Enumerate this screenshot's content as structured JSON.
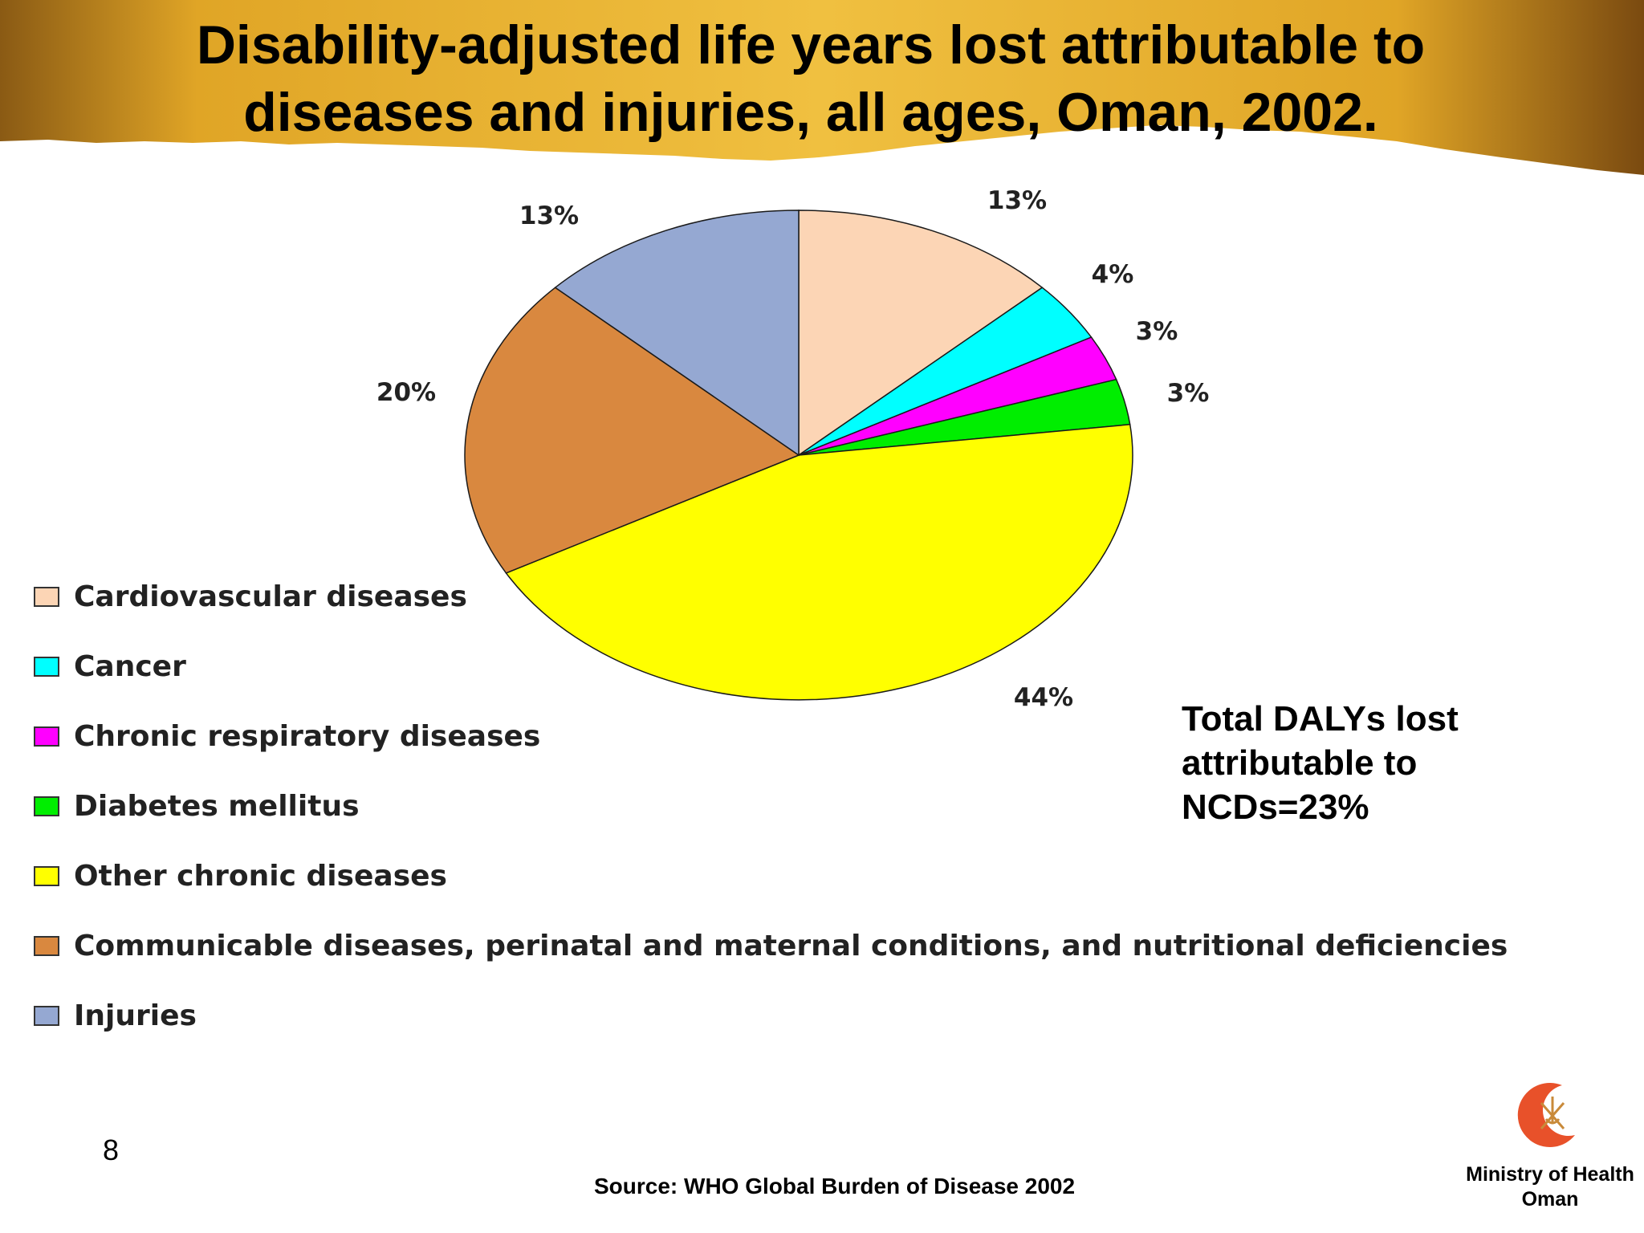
{
  "slide": {
    "title_lines": [
      "Disability-adjusted life years lost attributable to",
      "diseases and injuries, all ages, Oman, 2002."
    ],
    "note_lines": [
      "Total DALYs lost",
      "attributable to",
      "NCDs=23%"
    ],
    "page_number": "8",
    "source": "Source: WHO Global Burden of Disease 2002",
    "organization_lines": [
      "Ministry of Health",
      "Oman"
    ],
    "banner_colors": {
      "gold": "#e0a526",
      "dark": "#7a4a10"
    },
    "emblem_icon": "crescent-emblem-icon"
  },
  "chart_data": {
    "type": "pie",
    "title": "",
    "slices": [
      {
        "label": "Cardiovascular diseases",
        "value": 13,
        "display": "13%",
        "color": "#fcd5b5"
      },
      {
        "label": "Cancer",
        "value": 4,
        "display": "4%",
        "color": "#00ffff"
      },
      {
        "label": "Chronic respiratory diseases",
        "value": 3,
        "display": "3%",
        "color": "#ff00ff"
      },
      {
        "label": "Diabetes mellitus",
        "value": 3,
        "display": "3%",
        "color": "#00ee00"
      },
      {
        "label": "Other chronic diseases",
        "value": 44,
        "display": "44%",
        "color": "#ffff00"
      },
      {
        "label": "Communicable diseases, perinatal and maternal conditions, and nutritional deficiencies",
        "value": 20,
        "display": "20%",
        "color": "#d9883f"
      },
      {
        "label": "Injuries",
        "value": 13,
        "display": "13%",
        "color": "#95a8d2"
      }
    ],
    "start_angle_deg": 0,
    "direction": "clockwise",
    "legend_position": "left-bottom"
  }
}
